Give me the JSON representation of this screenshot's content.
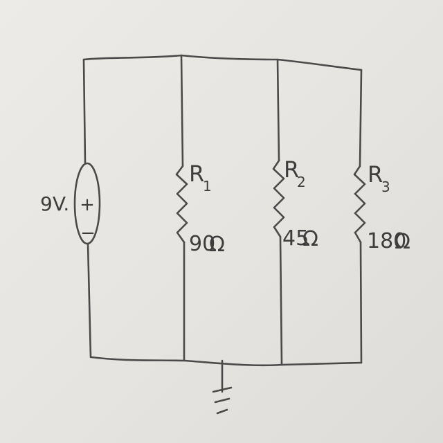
{
  "source": {
    "voltage": "9V.",
    "plus": "+",
    "minus": "−"
  },
  "resistors": [
    {
      "name": "R",
      "sub": "1",
      "value": "90",
      "unit": "Ω"
    },
    {
      "name": "R",
      "sub": "2",
      "value": "45",
      "unit": "Ω"
    },
    {
      "name": "R",
      "sub": "3",
      "value": "180",
      "unit": "Ω"
    }
  ]
}
